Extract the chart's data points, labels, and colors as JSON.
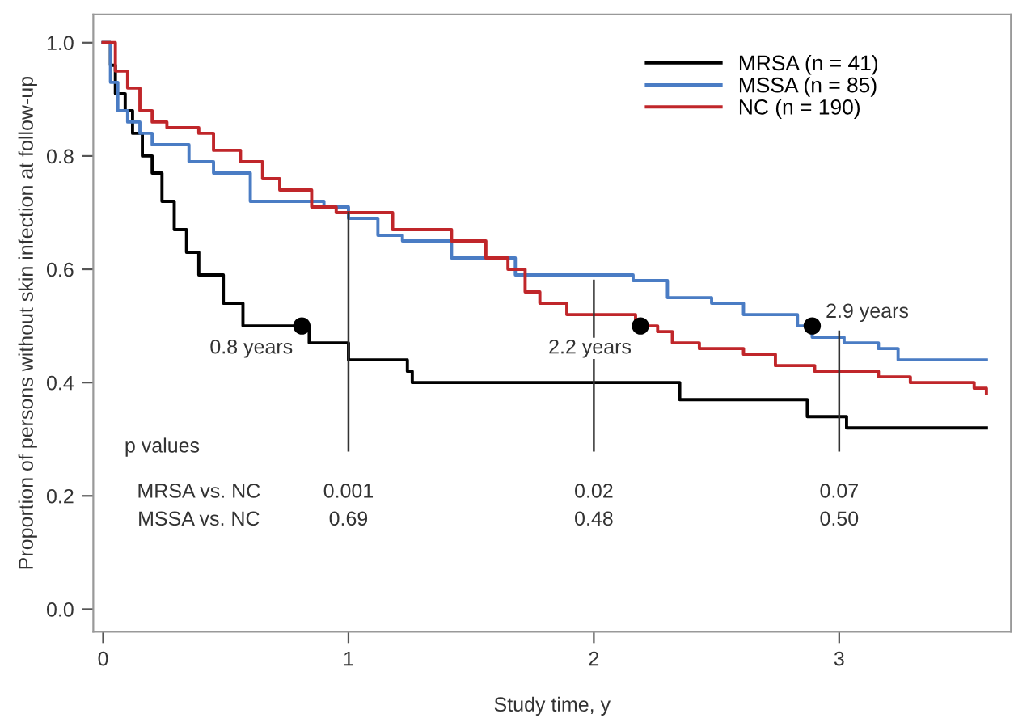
{
  "chart_data": {
    "type": "step",
    "xlabel": "Study time, y",
    "ylabel": "Proportion of persons without skin infection at follow-up",
    "xlim": [
      -0.04,
      3.7
    ],
    "ylim": [
      -0.04,
      1.05
    ],
    "xticks": [
      0,
      1,
      2,
      3
    ],
    "yticks": [
      {
        "value": 0,
        "label": "0.0"
      },
      0.2,
      0.4,
      0.6,
      0.8,
      {
        "value": 1,
        "label": "1.0"
      }
    ],
    "grid": false,
    "legend": "top right",
    "series": [
      {
        "name": "MRSA (n = 41)",
        "color": "#000000",
        "x": [
          0,
          0.03,
          0.05,
          0.09,
          0.12,
          0.16,
          0.2,
          0.24,
          0.29,
          0.34,
          0.39,
          0.49,
          0.57,
          0.84,
          1.0,
          1.24,
          1.26,
          2.35,
          2.87,
          3.03,
          3.6
        ],
        "values": [
          1.0,
          0.96,
          0.91,
          0.88,
          0.84,
          0.8,
          0.77,
          0.72,
          0.67,
          0.63,
          0.59,
          0.54,
          0.5,
          0.47,
          0.44,
          0.42,
          0.4,
          0.37,
          0.34,
          0.32,
          0.32
        ]
      },
      {
        "name": "MSSA (n = 85)",
        "color": "#4a7cc4",
        "x": [
          0,
          0.03,
          0.06,
          0.1,
          0.15,
          0.2,
          0.35,
          0.45,
          0.6,
          0.9,
          1.0,
          1.12,
          1.22,
          1.42,
          1.68,
          2.16,
          2.3,
          2.48,
          2.61,
          2.83,
          2.89,
          3.02,
          3.16,
          3.24,
          3.6
        ],
        "values": [
          1.0,
          0.93,
          0.88,
          0.86,
          0.84,
          0.82,
          0.79,
          0.77,
          0.72,
          0.71,
          0.69,
          0.66,
          0.65,
          0.62,
          0.59,
          0.58,
          0.55,
          0.54,
          0.52,
          0.5,
          0.48,
          0.47,
          0.46,
          0.44,
          0.44
        ]
      },
      {
        "name": "NC (n = 190)",
        "color": "#c0262a",
        "x": [
          0,
          0.05,
          0.1,
          0.15,
          0.2,
          0.26,
          0.39,
          0.45,
          0.56,
          0.65,
          0.72,
          0.85,
          0.95,
          1.11,
          1.18,
          1.42,
          1.56,
          1.65,
          1.72,
          1.78,
          1.89,
          1.99,
          2.17,
          2.26,
          2.32,
          2.43,
          2.61,
          2.74,
          2.9,
          3.16,
          3.29,
          3.55,
          3.6
        ],
        "values": [
          1.0,
          0.95,
          0.92,
          0.88,
          0.86,
          0.85,
          0.84,
          0.81,
          0.79,
          0.76,
          0.74,
          0.71,
          0.7,
          0.7,
          0.67,
          0.65,
          0.62,
          0.6,
          0.56,
          0.54,
          0.52,
          0.52,
          0.5,
          0.49,
          0.47,
          0.46,
          0.45,
          0.43,
          0.42,
          0.41,
          0.4,
          0.39,
          0.38
        ]
      },
      {
        "type": "line",
        "color": "#333333",
        "x": [
          1,
          1
        ],
        "values": [
          0.28,
          0.7
        ]
      },
      {
        "type": "line",
        "color": "#333333",
        "x": [
          2,
          2
        ],
        "values": [
          0.28,
          0.58
        ]
      },
      {
        "type": "line",
        "color": "#333333",
        "x": [
          3,
          3
        ],
        "values": [
          0.28,
          0.49
        ]
      },
      {
        "type": "scatter",
        "color": "#000000",
        "x": [
          0.81,
          2.19,
          2.89
        ],
        "values": [
          0.5,
          0.5,
          0.5
        ]
      }
    ],
    "annotations": [
      {
        "text": "0.8 years",
        "x": 0.81,
        "y": 0.5
      },
      {
        "text": "2.2 years",
        "x": 2.19,
        "y": 0.5
      },
      {
        "text": "2.9 years",
        "x": 2.89,
        "y": 0.5
      },
      "p values",
      "MRSA vs. NC",
      "0.001",
      "0.02",
      "0.07",
      "MSSA vs. NC",
      "0.69",
      "0.48",
      "0.50"
    ]
  }
}
